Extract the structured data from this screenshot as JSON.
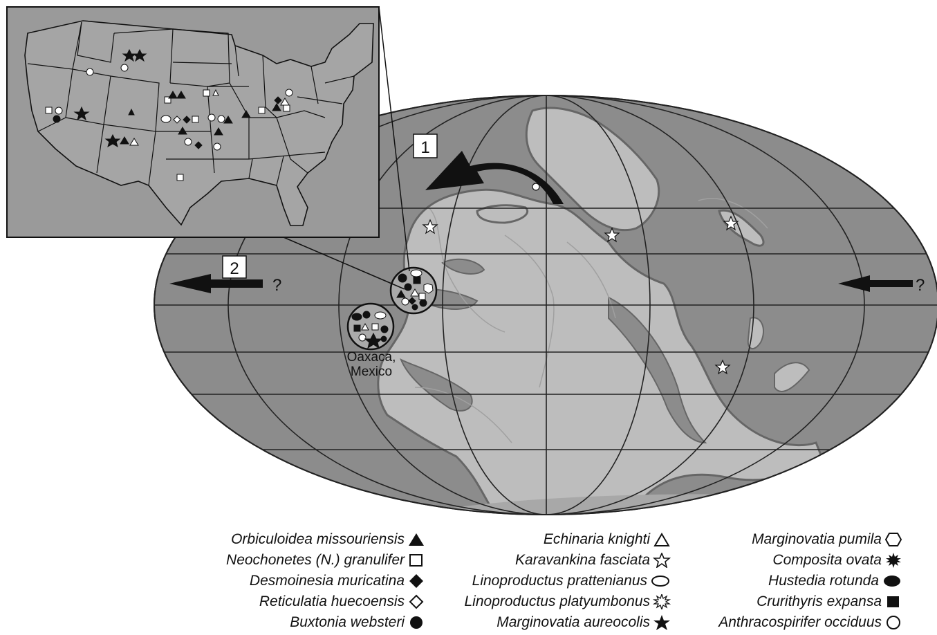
{
  "map": {
    "arrow_labels": [
      "1",
      "2"
    ],
    "question_marks": [
      "?",
      "?"
    ],
    "location_label_line1": "Oaxaca,",
    "location_label_line2": "Mexico"
  },
  "legend": {
    "columns": [
      [
        {
          "label": "Orbiculoidea missouriensis",
          "symbol": "filled-triangle"
        },
        {
          "label": "Neochonetes (N.) granulifer",
          "symbol": "open-square"
        },
        {
          "label": "Desmoinesia muricatina",
          "symbol": "filled-diamond"
        },
        {
          "label": "Reticulatia huecoensis",
          "symbol": "open-diamond"
        },
        {
          "label": "Buxtonia websteri",
          "symbol": "filled-circle"
        }
      ],
      [
        {
          "label": "Echinaria knighti",
          "symbol": "open-triangle"
        },
        {
          "label": "Karavankina fasciata",
          "symbol": "open-star"
        },
        {
          "label": "Linoproductus prattenianus",
          "symbol": "open-ellipse"
        },
        {
          "label": "Linoproductus platyumbonus",
          "symbol": "open-burst"
        },
        {
          "label": "Marginovatia aureocolis",
          "symbol": "filled-star"
        }
      ],
      [
        {
          "label": "Marginovatia pumila",
          "symbol": "open-hexagon"
        },
        {
          "label": "Composita ovata",
          "symbol": "filled-burst"
        },
        {
          "label": "Hustedia rotunda",
          "symbol": "filled-ellipse"
        },
        {
          "label": "Crurithyris expansa",
          "symbol": "filled-square"
        },
        {
          "label": "Anthracospirifer occiduus",
          "symbol": "open-circle"
        }
      ]
    ]
  },
  "colors": {
    "ocean": "#8c8c8c",
    "land": "#bdbdbd",
    "inset_bg": "#9a9a9a",
    "outline": "#222222"
  }
}
